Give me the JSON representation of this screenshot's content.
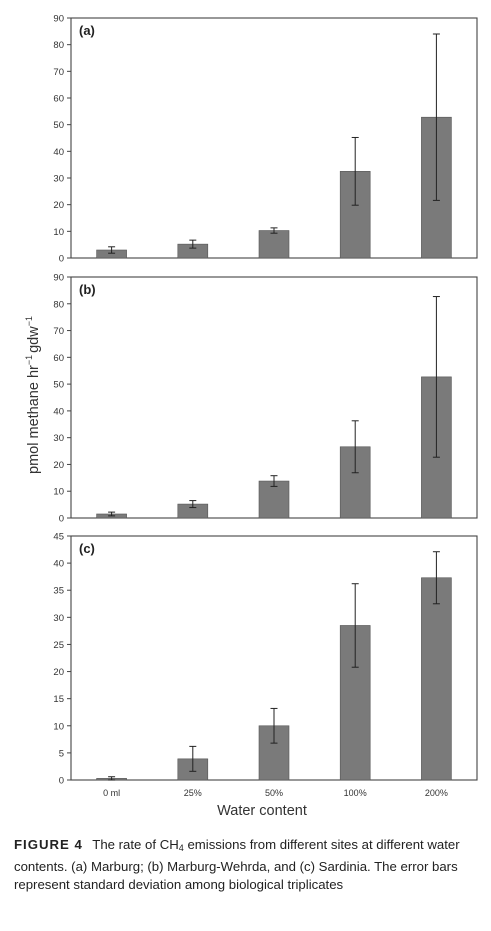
{
  "chart_data": {
    "type": "bar",
    "ylabel_main": "pmol methane hr",
    "ylabel_sup1": "−1",
    "ylabel_mid": "gdw",
    "ylabel_sup2": "−1",
    "xlabel": "Water content",
    "categories": [
      "0 ml",
      "25%",
      "50%",
      "100%",
      "200%"
    ],
    "bar_color": "#7a7a7a",
    "panels": [
      {
        "label": "(a)",
        "ylim": [
          0,
          90
        ],
        "yticks": [
          0,
          10,
          20,
          30,
          40,
          50,
          60,
          70,
          80,
          90
        ],
        "values": [
          3,
          5.2,
          10.3,
          32.5,
          52.8
        ],
        "errors": [
          1.2,
          1.5,
          1.0,
          12.7,
          31.2
        ]
      },
      {
        "label": "(b)",
        "ylim": [
          0,
          90
        ],
        "yticks": [
          0,
          10,
          20,
          30,
          40,
          50,
          60,
          70,
          80,
          90
        ],
        "values": [
          1.5,
          5.2,
          13.8,
          26.6,
          52.7
        ],
        "errors": [
          0.7,
          1.3,
          2.0,
          9.7,
          30.0
        ]
      },
      {
        "label": "(c)",
        "ylim": [
          0,
          45
        ],
        "yticks": [
          0,
          5,
          10,
          15,
          20,
          25,
          30,
          35,
          40,
          45
        ],
        "values": [
          0.3,
          3.9,
          10.0,
          28.5,
          37.3
        ],
        "errors": [
          0.3,
          2.3,
          3.2,
          7.7,
          4.8
        ]
      }
    ]
  },
  "caption": {
    "label": "FIGURE 4",
    "text_before": "The rate of CH",
    "subscript": "4",
    "text_after": " emissions from different sites at different water contents. (a) Marburg; (b) Marburg-Wehrda, and (c) Sardinia. The error bars represent standard deviation among biological triplicates"
  }
}
